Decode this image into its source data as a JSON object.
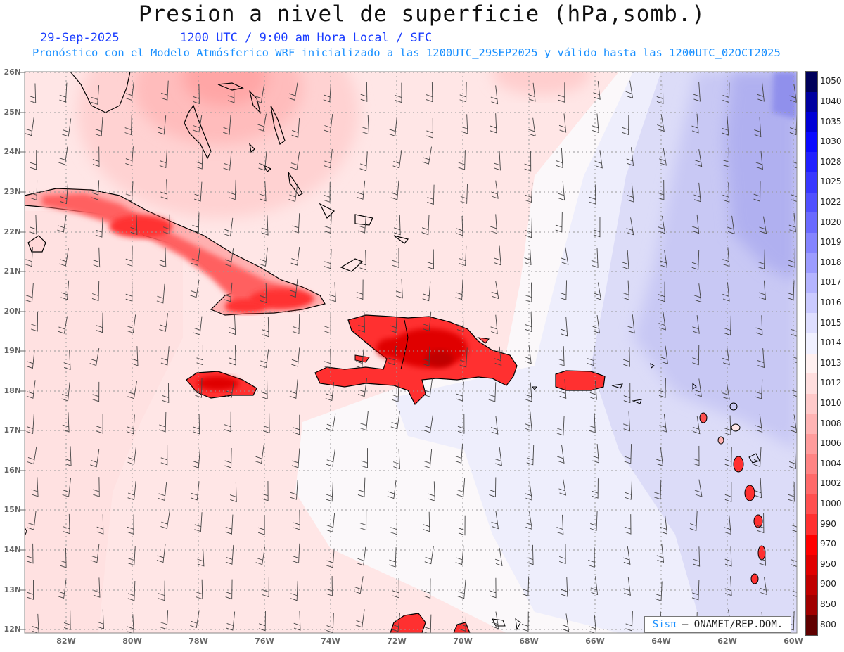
{
  "header": {
    "title": "Presion a nivel de superficie (hPa,somb.)",
    "date": "29-Sep-2025",
    "time_info": "1200 UTC / 9:00 am Hora Local / SFC",
    "model_info": "Pronóstico con el Modelo Atmósferico WRF inicializado a las 1200UTC_29SEP2025 y válido hasta las  1200UTC_02OCT2025"
  },
  "map": {
    "lat_labels": [
      "26N",
      "25N",
      "24N",
      "23N",
      "22N",
      "21N",
      "20N",
      "19N",
      "18N",
      "17N",
      "16N",
      "15N",
      "14N",
      "13N",
      "12N"
    ],
    "lon_labels": [
      "82W",
      "80W",
      "78W",
      "76W",
      "74W",
      "72W",
      "70W",
      "68W",
      "66W",
      "64W",
      "62W",
      "60W"
    ]
  },
  "colorbar": {
    "levels": [
      "1050",
      "1040",
      "1035",
      "1030",
      "1028",
      "1025",
      "1022",
      "1020",
      "1019",
      "1018",
      "1017",
      "1016",
      "1015",
      "1014",
      "1013",
      "1012",
      "1010",
      "1008",
      "1006",
      "1004",
      "1002",
      "1000",
      "990",
      "970",
      "950",
      "900",
      "850",
      "800"
    ],
    "colors": [
      "#00005a",
      "#0000a0",
      "#0000d6",
      "#0a0aff",
      "#2020ff",
      "#3838ff",
      "#5050ff",
      "#6a6aff",
      "#8484ff",
      "#9c9cff",
      "#b4b4ff",
      "#cacaff",
      "#dedeff",
      "#f0f0ff",
      "#fff0f0",
      "#ffdede",
      "#ffcaca",
      "#ffb4b4",
      "#ff9c9c",
      "#ff8484",
      "#ff6a6a",
      "#ff5050",
      "#ff3030",
      "#ff0000",
      "#e00000",
      "#c00000",
      "#a00000",
      "#600000"
    ]
  },
  "credit": {
    "brand": "Sisπ",
    "text": " – ONAMET/REP.DOM."
  }
}
